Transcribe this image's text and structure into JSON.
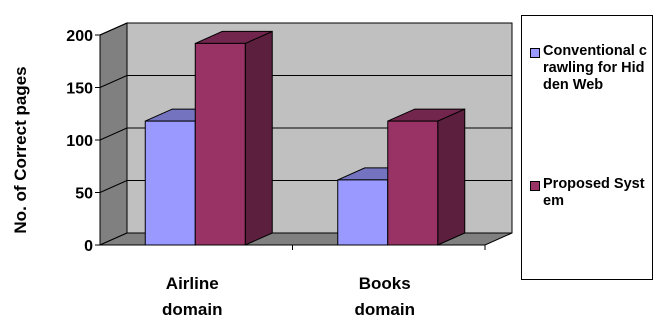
{
  "chart_data": {
    "type": "bar",
    "title": "",
    "xlabel": "",
    "ylabel": "No. of Correct  pages",
    "categories": [
      "Airline domain",
      "Books domain"
    ],
    "category_lines": [
      [
        "Airline",
        "domain"
      ],
      [
        "Books",
        "domain"
      ]
    ],
    "series": [
      {
        "name": "Conventional crawling for Hidden Web",
        "values": [
          118,
          62
        ],
        "color": "#9999ff"
      },
      {
        "name": "Proposed System",
        "values": [
          192,
          118
        ],
        "color": "#993366"
      }
    ],
    "ylim": [
      0,
      200
    ],
    "yticks": [
      "0",
      "50",
      "100",
      "150",
      "200"
    ],
    "grid": true,
    "legend": "right",
    "bar_style": "3d",
    "wall_color": "#c0c0c0"
  }
}
